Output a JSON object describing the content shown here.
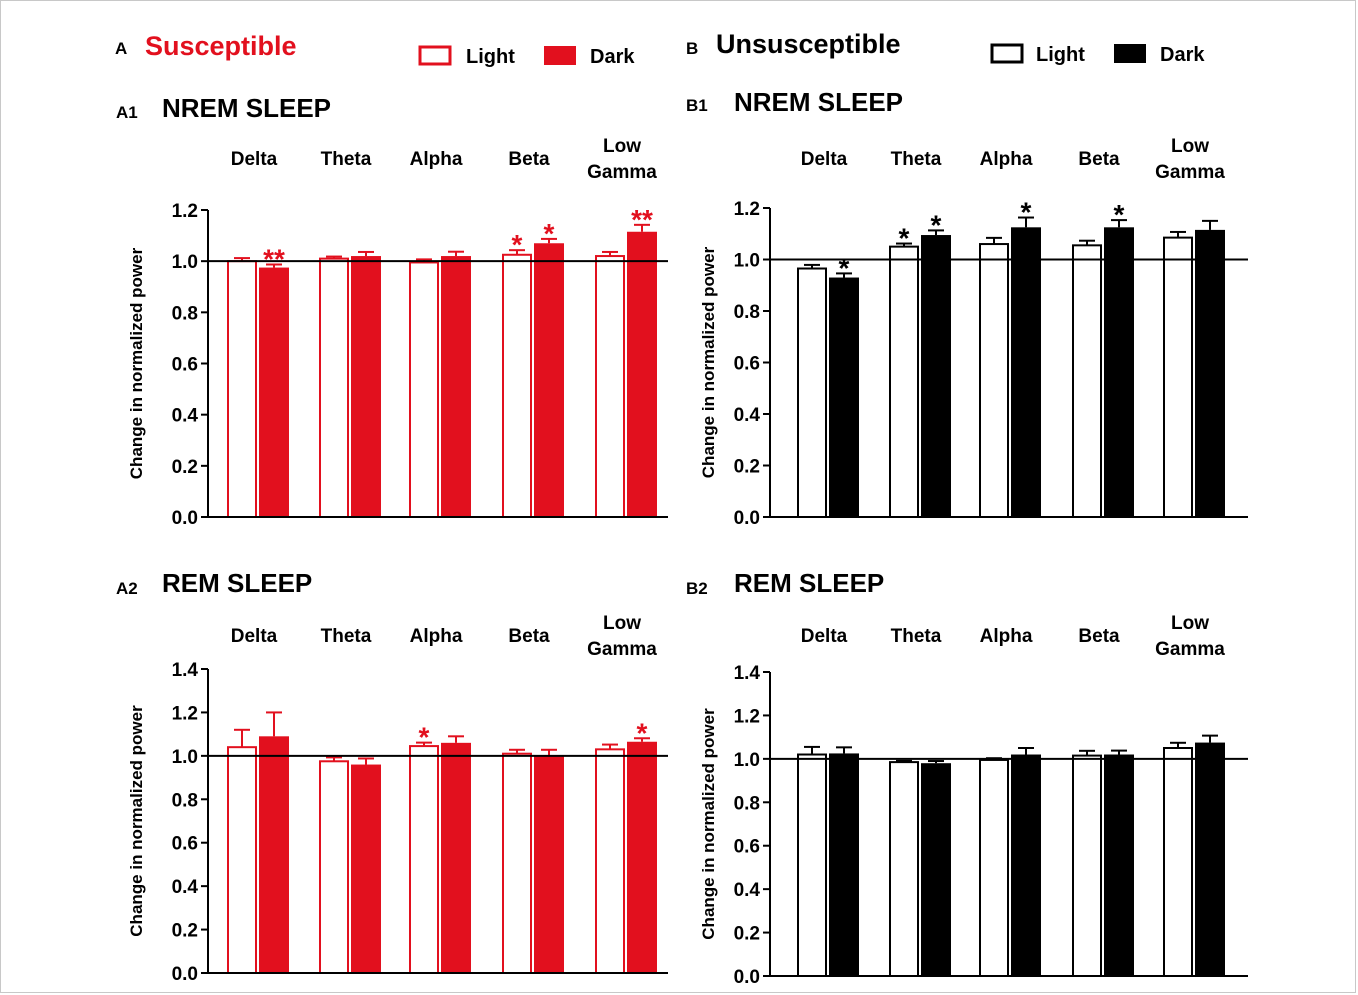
{
  "colors": {
    "susceptible": "#e2101e",
    "unsusceptible": "#000000",
    "light_fill": "#ffffff"
  },
  "panels": {
    "A": {
      "letter": "A",
      "title": "Susceptible",
      "legend": {
        "light": "Light",
        "dark": "Dark"
      }
    },
    "B": {
      "letter": "B",
      "title": "Unsusceptible",
      "legend": {
        "light": "Light",
        "dark": "Dark"
      }
    }
  },
  "chart_data": [
    {
      "id": "A1",
      "type": "bar",
      "panel_label": "A1",
      "title": "NREM SLEEP",
      "color": "#e2101e",
      "categories": [
        "Delta",
        "Theta",
        "Alpha",
        "Beta",
        "Low Gamma"
      ],
      "ylabel": "Change in normalized power",
      "ylim": [
        0,
        1.2
      ],
      "yticks": [
        "0.0",
        "0.2",
        "0.4",
        "0.6",
        "0.8",
        "1.0",
        "1.2"
      ],
      "reference_line": 1.0,
      "series": [
        {
          "name": "Light",
          "values": [
            1.0,
            1.01,
            0.995,
            1.025,
            1.02
          ],
          "errors": [
            0.012,
            0.008,
            0.012,
            0.018,
            0.016
          ],
          "sig": [
            "",
            "",
            "",
            "*",
            ""
          ]
        },
        {
          "name": "Dark",
          "values": [
            0.975,
            1.02,
            1.02,
            1.07,
            1.115
          ],
          "errors": [
            0.012,
            0.016,
            0.017,
            0.017,
            0.027
          ],
          "sig": [
            "**",
            "",
            "",
            "*",
            "**"
          ]
        }
      ]
    },
    {
      "id": "B1",
      "type": "bar",
      "panel_label": "B1",
      "title": "NREM SLEEP",
      "color": "#000000",
      "categories": [
        "Delta",
        "Theta",
        "Alpha",
        "Beta",
        "Low Gamma"
      ],
      "ylabel": "Change in normalized power",
      "ylim": [
        0,
        1.2
      ],
      "yticks": [
        "0.0",
        "0.2",
        "0.4",
        "0.6",
        "0.8",
        "1.0",
        "1.2"
      ],
      "reference_line": 1.0,
      "series": [
        {
          "name": "Light",
          "values": [
            0.965,
            1.05,
            1.06,
            1.055,
            1.085
          ],
          "errors": [
            0.014,
            0.012,
            0.024,
            0.018,
            0.022
          ],
          "sig": [
            "",
            "*",
            "",
            "",
            ""
          ]
        },
        {
          "name": "Dark",
          "values": [
            0.93,
            1.095,
            1.125,
            1.125,
            1.115
          ],
          "errors": [
            0.016,
            0.018,
            0.038,
            0.028,
            0.035
          ],
          "sig": [
            "*",
            "*",
            "*",
            "*",
            ""
          ]
        }
      ]
    },
    {
      "id": "A2",
      "type": "bar",
      "panel_label": "A2",
      "title": "REM SLEEP",
      "color": "#e2101e",
      "categories": [
        "Delta",
        "Theta",
        "Alpha",
        "Beta",
        "Low Gamma"
      ],
      "ylabel": "Change in normalized power",
      "ylim": [
        0,
        1.4
      ],
      "yticks": [
        "0.0",
        "0.2",
        "0.4",
        "0.6",
        "0.8",
        "1.0",
        "1.2",
        "1.4"
      ],
      "reference_line": 1.0,
      "series": [
        {
          "name": "Light",
          "values": [
            1.04,
            0.975,
            1.045,
            1.01,
            1.03
          ],
          "errors": [
            0.08,
            0.018,
            0.016,
            0.018,
            0.022
          ],
          "sig": [
            "",
            "",
            "*",
            "",
            ""
          ]
        },
        {
          "name": "Dark",
          "values": [
            1.09,
            0.96,
            1.06,
            1.0,
            1.065
          ],
          "errors": [
            0.11,
            0.028,
            0.03,
            0.028,
            0.016
          ],
          "sig": [
            "",
            "",
            "",
            "",
            "*"
          ]
        }
      ]
    },
    {
      "id": "B2",
      "type": "bar",
      "panel_label": "B2",
      "title": "REM SLEEP",
      "color": "#000000",
      "categories": [
        "Delta",
        "Theta",
        "Alpha",
        "Beta",
        "Low Gamma"
      ],
      "ylabel": "Change in normalized power",
      "ylim": [
        0,
        1.4
      ],
      "yticks": [
        "0.0",
        "0.2",
        "0.4",
        "0.6",
        "0.8",
        "1.0",
        "1.2",
        "1.4"
      ],
      "reference_line": 1.0,
      "series": [
        {
          "name": "Light",
          "values": [
            1.02,
            0.985,
            0.995,
            1.015,
            1.05
          ],
          "errors": [
            0.035,
            0.006,
            0.008,
            0.022,
            0.024
          ],
          "sig": [
            "",
            "",
            "",
            "",
            ""
          ]
        },
        {
          "name": "Dark",
          "values": [
            1.025,
            0.98,
            1.02,
            1.02,
            1.075
          ],
          "errors": [
            0.028,
            0.01,
            0.03,
            0.018,
            0.032
          ],
          "sig": [
            "",
            "",
            "",
            "",
            ""
          ]
        }
      ]
    }
  ]
}
